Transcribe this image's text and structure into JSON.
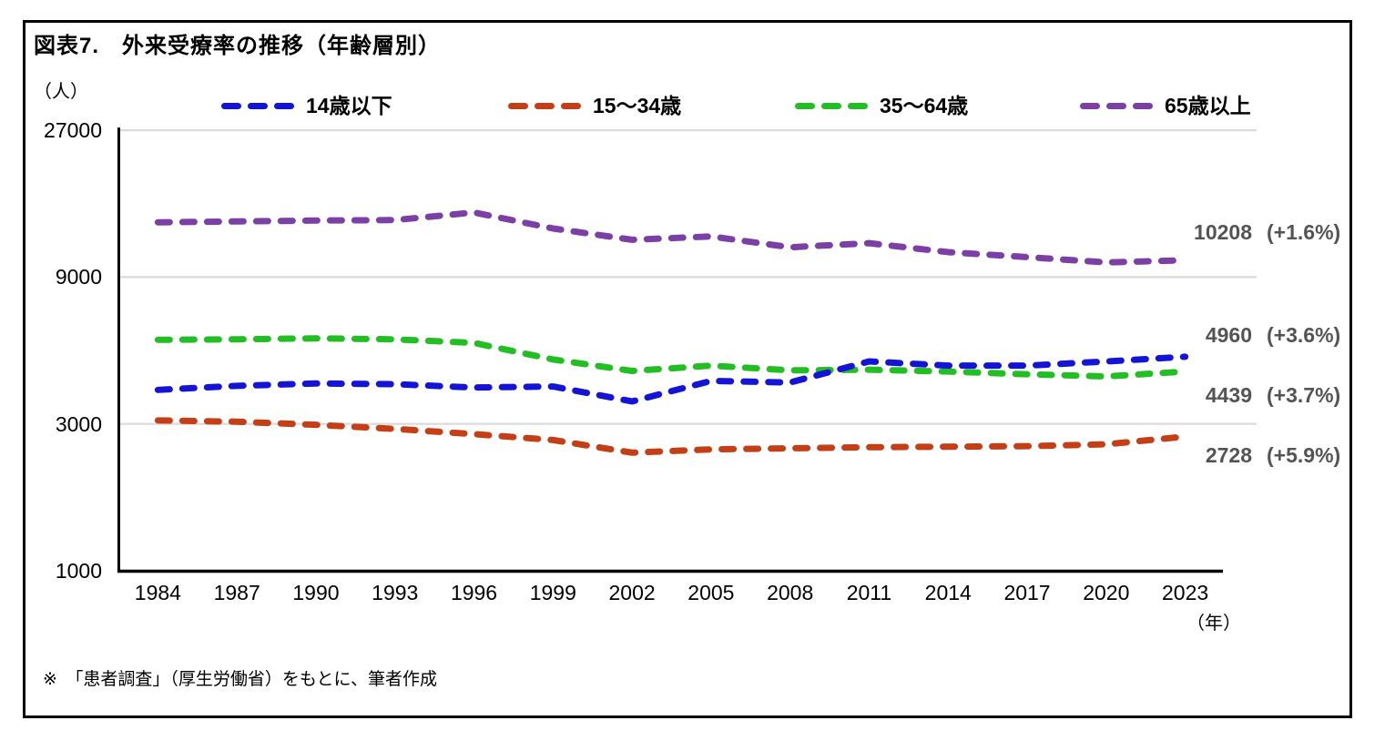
{
  "figure": {
    "title": "図表7.　外来受療率の推移（年齢層別）",
    "y_unit_label": "（人）",
    "x_unit_label": "（年）",
    "footnote": "※　「患者調査」（厚生労働省）をもとに、筆者作成"
  },
  "chart_data": {
    "type": "line",
    "title": "外来受療率の推移（年齢層別）",
    "x_label": "年",
    "y_label": "人",
    "y_scale": "log",
    "y_ticks": [
      27000,
      9000,
      3000,
      1000
    ],
    "ylim": [
      1000,
      27000
    ],
    "grid": "horizontal",
    "grid_color": "#DADADA",
    "axis_color": "#000000",
    "end_label_color": "#545454",
    "legend_position": "top",
    "line_style": "dashed",
    "categories": [
      "1984",
      "1987",
      "1990",
      "1993",
      "1996",
      "1999",
      "2002",
      "2005",
      "2008",
      "2011",
      "2014",
      "2017",
      "2020",
      "2023"
    ],
    "series": [
      {
        "key": "age-0-14",
        "name": "14歳以下",
        "color": "#1414D6",
        "values": [
          3870,
          3990,
          4060,
          4040,
          3940,
          3970,
          3550,
          4140,
          4090,
          4790,
          4640,
          4640,
          4788,
          4960
        ],
        "end_value": "4960",
        "end_change": "(+3.6%)"
      },
      {
        "key": "age-15-34",
        "name": "15～34歳",
        "color": "#C43E16",
        "values": [
          3080,
          3050,
          2980,
          2890,
          2780,
          2660,
          2420,
          2480,
          2500,
          2520,
          2530,
          2540,
          2576,
          2728
        ],
        "end_value": "2728",
        "end_change": "(+5.9%)"
      },
      {
        "key": "age-35-64",
        "name": "35～64歳",
        "color": "#23BE23",
        "values": [
          5630,
          5650,
          5690,
          5650,
          5500,
          4860,
          4460,
          4640,
          4480,
          4500,
          4440,
          4350,
          4281,
          4439
        ],
        "end_value": "4439",
        "end_change": "(+3.7%)"
      },
      {
        "key": "age-65-over",
        "name": "65歳以上",
        "color": "#7B3FA6",
        "values": [
          13560,
          13650,
          13740,
          13790,
          14600,
          12950,
          11900,
          12200,
          11250,
          11600,
          10850,
          10450,
          10047,
          10208
        ],
        "end_value": "10208",
        "end_change": "(+1.6%)"
      }
    ]
  }
}
